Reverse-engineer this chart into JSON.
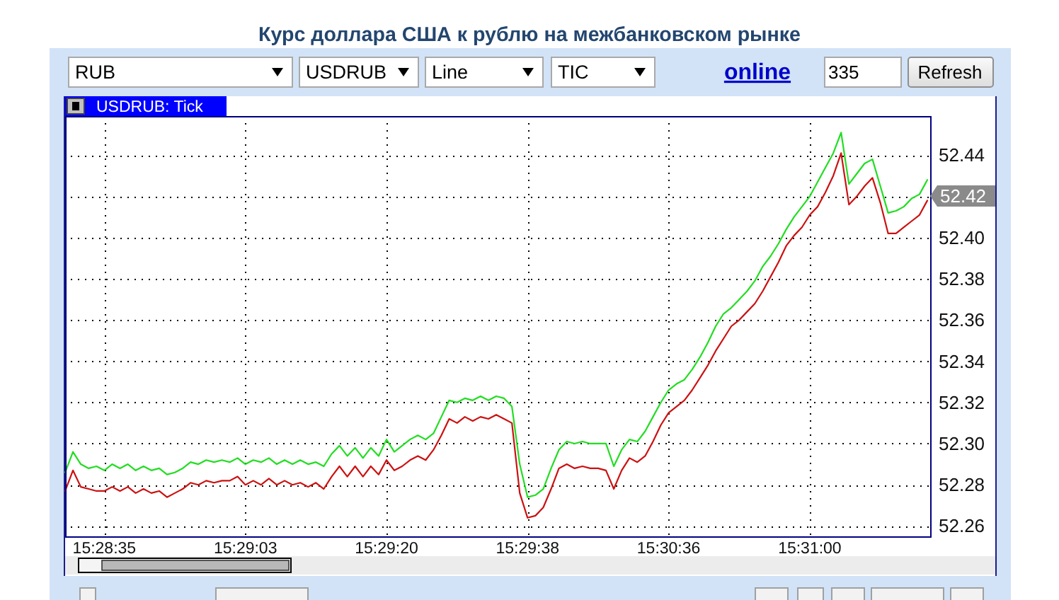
{
  "chart_data": {
    "type": "line",
    "title": "Курс доллара США к рублю на межбанковском рынке",
    "subtitle": "USDRUB: Tick",
    "annotations": [
      "RUB",
      "USDRUB",
      "Line",
      "TIC",
      "online",
      "335",
      "Refresh",
      "52.42"
    ],
    "categories": [
      null,
      null,
      null,
      null,
      null,
      "15:28:35",
      null,
      null,
      null,
      null,
      null,
      null,
      null,
      null,
      null,
      null,
      null,
      null,
      null,
      null,
      null,
      null,
      null,
      "15:29:03",
      null,
      null,
      null,
      null,
      null,
      null,
      null,
      null,
      null,
      null,
      null,
      null,
      null,
      null,
      null,
      null,
      null,
      "15:29:20",
      null,
      null,
      null,
      null,
      null,
      null,
      null,
      null,
      null,
      null,
      null,
      null,
      null,
      null,
      null,
      null,
      null,
      "15:29:38",
      null,
      null,
      null,
      null,
      null,
      null,
      null,
      null,
      null,
      null,
      null,
      null,
      null,
      null,
      null,
      null,
      null,
      "15:30:36",
      null,
      null,
      null,
      null,
      null,
      null,
      null,
      null,
      null,
      null,
      null,
      null,
      null,
      null,
      null,
      null,
      null,
      "15:31:00",
      null,
      null,
      null,
      null,
      null,
      null,
      null,
      null,
      null,
      null,
      null,
      null,
      null,
      null,
      null
    ],
    "series": [
      {
        "color": "#22dd22",
        "values": [
          52.286,
          52.296,
          52.29,
          52.288,
          52.289,
          52.287,
          52.29,
          52.288,
          52.29,
          52.287,
          52.289,
          52.287,
          52.288,
          52.285,
          52.286,
          52.288,
          52.291,
          52.29,
          52.292,
          52.291,
          52.292,
          52.291,
          52.293,
          52.29,
          52.292,
          52.291,
          52.293,
          52.29,
          52.292,
          52.29,
          52.292,
          52.29,
          52.291,
          52.289,
          52.295,
          52.299,
          52.294,
          52.298,
          52.293,
          52.298,
          52.294,
          52.302,
          52.296,
          52.299,
          52.302,
          52.304,
          52.302,
          52.305,
          52.313,
          52.321,
          52.32,
          52.322,
          52.321,
          52.323,
          52.321,
          52.323,
          52.322,
          52.318,
          52.29,
          52.274,
          52.275,
          52.278,
          52.288,
          52.297,
          52.301,
          52.3,
          52.301,
          52.3,
          52.3,
          52.3,
          52.289,
          52.297,
          52.302,
          52.301,
          52.306,
          52.313,
          52.32,
          52.326,
          52.329,
          52.331,
          52.336,
          52.342,
          52.349,
          52.357,
          52.363,
          52.366,
          52.37,
          52.374,
          52.379,
          52.386,
          52.391,
          52.397,
          52.404,
          52.41,
          52.415,
          52.42,
          52.427,
          52.434,
          52.441,
          52.451,
          52.426,
          52.431,
          52.436,
          52.438,
          52.425,
          52.412,
          52.413,
          52.415,
          52.419,
          52.421,
          52.428
        ]
      },
      {
        "color": "#cc1111",
        "values": [
          52.277,
          52.287,
          52.279,
          52.278,
          52.277,
          52.277,
          52.279,
          52.277,
          52.279,
          52.276,
          52.278,
          52.276,
          52.277,
          52.274,
          52.276,
          52.278,
          52.281,
          52.28,
          52.282,
          52.281,
          52.282,
          52.282,
          52.284,
          52.28,
          52.282,
          52.28,
          52.283,
          52.28,
          52.282,
          52.28,
          52.281,
          52.279,
          52.281,
          52.278,
          52.284,
          52.289,
          52.284,
          52.289,
          52.284,
          52.289,
          52.285,
          52.292,
          52.287,
          52.289,
          52.292,
          52.294,
          52.292,
          52.297,
          52.304,
          52.312,
          52.31,
          52.313,
          52.311,
          52.313,
          52.312,
          52.314,
          52.312,
          52.31,
          52.276,
          52.264,
          52.265,
          52.269,
          52.278,
          52.288,
          52.29,
          52.288,
          52.289,
          52.288,
          52.288,
          52.287,
          52.278,
          52.287,
          52.293,
          52.291,
          52.294,
          52.301,
          52.309,
          52.315,
          52.318,
          52.321,
          52.326,
          52.332,
          52.338,
          52.345,
          52.351,
          52.357,
          52.36,
          52.364,
          52.368,
          52.374,
          52.381,
          52.388,
          52.396,
          52.401,
          52.405,
          52.411,
          52.415,
          52.422,
          52.43,
          52.441,
          52.416,
          52.42,
          52.425,
          52.429,
          52.417,
          52.402,
          52.402,
          52.405,
          52.408,
          52.411,
          52.418
        ]
      }
    ],
    "ylim": [
      52.255,
      52.459
    ],
    "yticks": [
      52.26,
      52.28,
      {
        "value": 52.3,
        "label": "52.30"
      },
      52.32,
      52.34,
      52.36,
      52.38,
      {
        "value": 52.4,
        "label": "52.40"
      },
      {
        "value": 52.42,
        "label": null
      },
      52.44
    ],
    "grid": true
  }
}
